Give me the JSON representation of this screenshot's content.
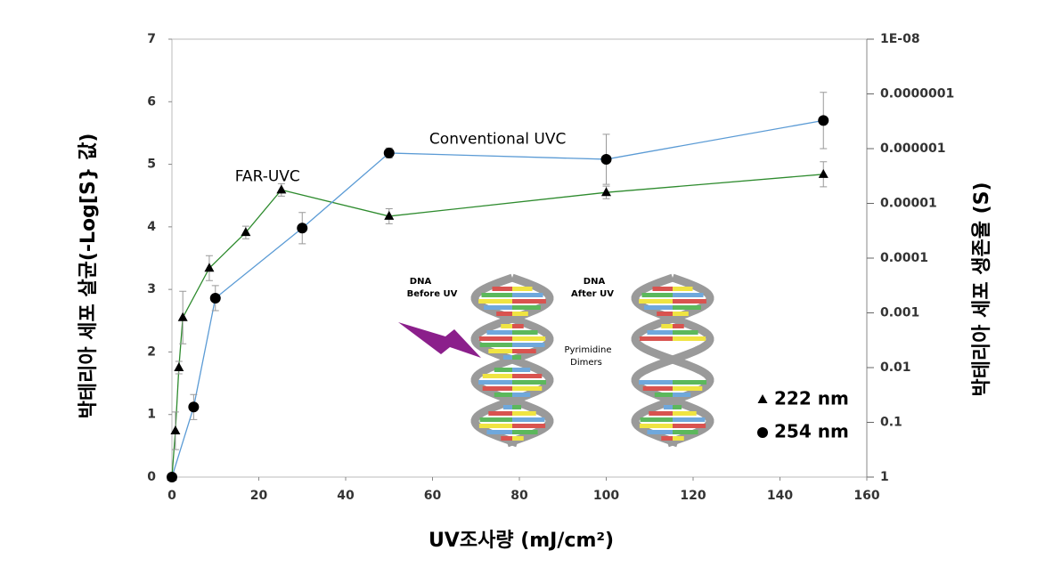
{
  "chart_data": {
    "type": "line",
    "xlabel": "UV조사량 (mJ/cm²)",
    "ylabel": "박테리아 세포 살균(-Log[S} 값)",
    "y2label": "박테리아 세포 생존율   (S)",
    "xlim": [
      0,
      160
    ],
    "xticks": [
      0,
      20,
      40,
      60,
      80,
      100,
      120,
      140,
      160
    ],
    "ylim": [
      0,
      7
    ],
    "yticks": [
      0,
      1,
      2,
      3,
      4,
      5,
      6,
      7
    ],
    "y2lim": [
      1,
      1e-08
    ],
    "y2scale": "log",
    "y2ticks": [
      1,
      0.1,
      0.01,
      0.001,
      0.0001,
      1e-05,
      1e-06,
      {
        "value": 1e-07,
        "label": "0.0000001"
      },
      {
        "value": 1e-08,
        "label": "1E-08"
      }
    ],
    "grid": false,
    "legend": "lower right",
    "series": [
      {
        "name": "222 nm",
        "marker": "triangle",
        "color": "#2e8b2e",
        "x": [
          0,
          0.8,
          1.6,
          2.5,
          8.6,
          17,
          25.2,
          50,
          100,
          150
        ],
        "values": [
          0,
          0.74,
          1.75,
          2.55,
          3.34,
          3.91,
          4.59,
          4.17,
          4.55,
          4.84
        ],
        "errors": [
          null,
          0.3,
          0.1,
          0.42,
          0.2,
          0.1,
          0.1,
          0.12,
          0.1,
          0.2
        ]
      },
      {
        "name": "254 nm",
        "marker": "circle",
        "color": "#5b9bd5",
        "x": [
          0,
          5,
          10,
          30,
          50,
          100,
          150
        ],
        "values": [
          0,
          1.12,
          2.86,
          3.98,
          5.18,
          5.08,
          5.7
        ],
        "errors": [
          null,
          0.2,
          0.2,
          0.25,
          0.08,
          0.4,
          0.45
        ]
      }
    ],
    "annotations": [
      {
        "text": "FAR-UVC",
        "x": 22,
        "y": 4.8
      },
      {
        "text": "Conventional UVC",
        "x": 75,
        "y": 5.4
      }
    ],
    "illustration": {
      "before": [
        "DNA",
        "Before UV"
      ],
      "after": [
        "DNA",
        "After UV"
      ],
      "dimers": [
        "Pyrimidine",
        "Dimers"
      ]
    }
  }
}
